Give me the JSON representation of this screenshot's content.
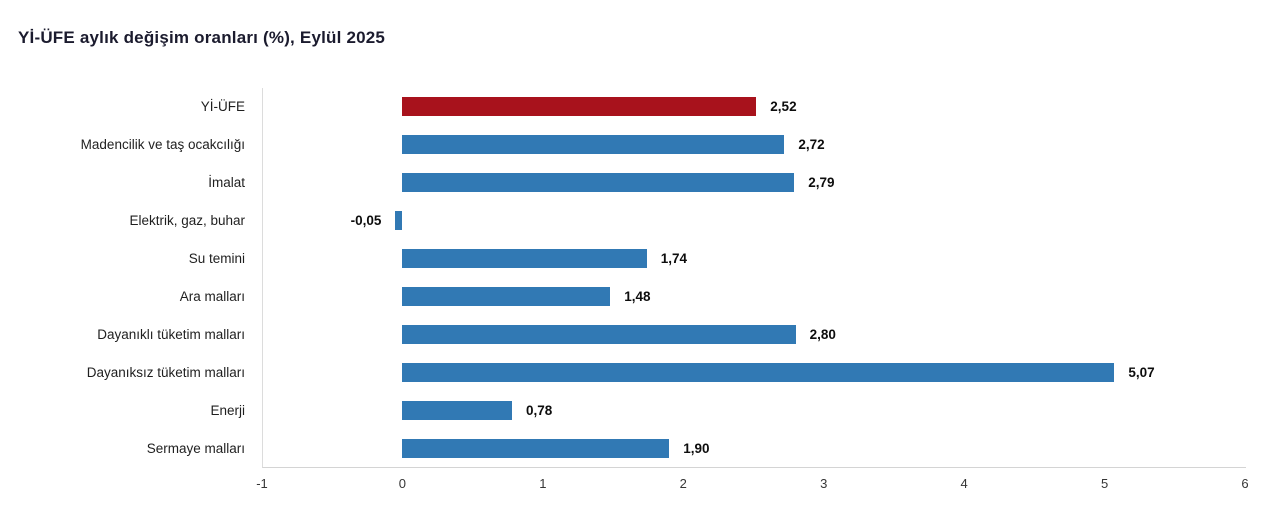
{
  "title": "Yİ-ÜFE aylık değişim oranları (%), Eylül 2025",
  "chart_data": {
    "type": "bar",
    "orientation": "horizontal",
    "title": "Yİ-ÜFE aylık değişim oranları (%), Eylül 2025",
    "categories": [
      "Yİ-ÜFE",
      "Madencilik ve taş ocakcılığı",
      "İmalat",
      "Elektrik, gaz, buhar",
      "Su temini",
      "Ara malları",
      "Dayanıklı tüketim malları",
      "Dayanıksız tüketim malları",
      "Enerji",
      "Sermaye malları"
    ],
    "values": [
      2.52,
      2.72,
      2.79,
      -0.05,
      1.74,
      1.48,
      2.8,
      5.07,
      0.78,
      1.9
    ],
    "value_labels": [
      "2,52",
      "2,72",
      "2,79",
      "-0,05",
      "1,74",
      "1,48",
      "2,80",
      "5,07",
      "0,78",
      "1,90"
    ],
    "xlabel": "",
    "ylabel": "",
    "xlim": [
      -1,
      6
    ],
    "x_ticks": [
      -1,
      0,
      1,
      2,
      3,
      4,
      5,
      6
    ],
    "grid": false,
    "legend": "none",
    "bar_color": "#3179b4",
    "highlight_color": "#a8121c",
    "highlight_index": 0,
    "axis_color": "#d4d4d4"
  }
}
